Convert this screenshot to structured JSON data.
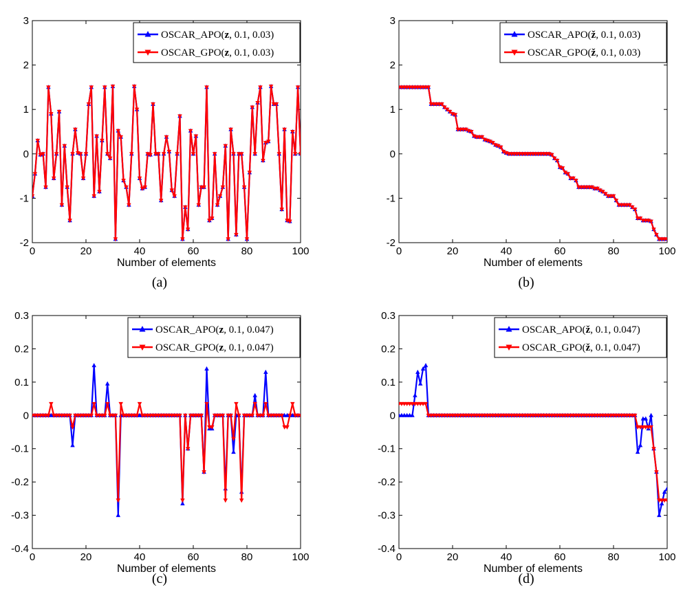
{
  "colors": {
    "apo": "#0000ff",
    "gpo": "#ff0000",
    "axis": "#000000"
  },
  "chart_data": [
    {
      "type": "line",
      "caption": "(a)",
      "xlabel": "Number of elements",
      "xlim": [
        0,
        100
      ],
      "ylim": [
        -2,
        3
      ],
      "xticks": [
        "0",
        "20",
        "40",
        "60",
        "80",
        "100"
      ],
      "yticks": [
        "-2",
        "-1",
        "0",
        "1",
        "2",
        "3"
      ],
      "legend_position": "top-right",
      "series": [
        {
          "name": "OSCAR_APO(z, 0.1, 0.03)",
          "name_func": "OSCAR_APO(",
          "name_args": ", 0.1, 0.03)",
          "name_sym": "z",
          "marker": "triangle-up",
          "values": [
            -0.95,
            -0.45,
            0.3,
            -0.02,
            0.0,
            -0.75,
            1.5,
            0.9,
            -0.55,
            0.0,
            0.95,
            -1.15,
            0.18,
            -0.75,
            -1.5,
            0.0,
            0.55,
            0.02,
            0.0,
            -0.55,
            0.0,
            1.12,
            1.5,
            -0.95,
            0.4,
            -0.85,
            0.3,
            1.5,
            0.0,
            -0.1,
            1.52,
            -1.92,
            0.52,
            0.38,
            -0.6,
            -0.75,
            -1.15,
            0.0,
            1.52,
            1.0,
            -0.55,
            -0.78,
            -0.75,
            0.0,
            -0.02,
            1.12,
            0.0,
            0.0,
            -1.05,
            0.0,
            0.38,
            0.05,
            -0.82,
            -0.95,
            0.0,
            0.85,
            -1.92,
            -1.2,
            -1.7,
            0.52,
            0.0,
            0.4,
            -1.15,
            -0.75,
            -0.75,
            1.5,
            -1.5,
            -1.45,
            0.0,
            -1.15,
            -0.95,
            -0.75,
            0.18,
            -1.92,
            0.55,
            0.0,
            -1.82,
            0.0,
            0.0,
            -0.75,
            -1.92,
            -0.42,
            1.05,
            0.0,
            1.15,
            1.5,
            -0.15,
            0.25,
            0.28,
            1.52,
            1.12,
            1.12,
            0.0,
            -1.25,
            0.55,
            -1.5,
            -1.52,
            0.5,
            0.0,
            1.5,
            0.0,
            0.95,
            -0.32
          ]
        },
        {
          "name": "OSCAR_GPO(z, 0.1, 0.03)",
          "name_func": "OSCAR_GPO(",
          "name_args": ", 0.1, 0.03)",
          "name_sym": "z",
          "marker": "triangle-down",
          "values": [
            -0.95,
            -0.45,
            0.3,
            -0.02,
            0.0,
            -0.75,
            1.5,
            0.9,
            -0.55,
            0.0,
            0.95,
            -1.15,
            0.18,
            -0.75,
            -1.5,
            0.0,
            0.55,
            0.02,
            0.0,
            -0.55,
            0.0,
            1.12,
            1.5,
            -0.95,
            0.4,
            -0.85,
            0.3,
            1.5,
            0.0,
            -0.1,
            1.52,
            -1.92,
            0.52,
            0.38,
            -0.6,
            -0.75,
            -1.15,
            0.0,
            1.52,
            1.0,
            -0.55,
            -0.78,
            -0.75,
            0.0,
            -0.02,
            1.12,
            0.0,
            0.0,
            -1.05,
            0.0,
            0.38,
            0.05,
            -0.82,
            -0.95,
            0.0,
            0.85,
            -1.92,
            -1.2,
            -1.7,
            0.52,
            0.0,
            0.4,
            -1.15,
            -0.75,
            -0.75,
            1.5,
            -1.5,
            -1.45,
            0.0,
            -1.15,
            -0.95,
            -0.75,
            0.18,
            -1.92,
            0.55,
            0.0,
            -1.82,
            0.0,
            0.0,
            -0.75,
            -1.92,
            -0.42,
            1.05,
            0.0,
            1.15,
            1.5,
            -0.15,
            0.25,
            0.28,
            1.52,
            1.12,
            1.12,
            0.0,
            -1.25,
            0.55,
            -1.5,
            -1.52,
            0.5,
            0.0,
            1.5,
            0.0,
            0.95,
            -0.32
          ]
        }
      ]
    },
    {
      "type": "line",
      "caption": "(b)",
      "xlabel": "Number of elements",
      "xlim": [
        0,
        100
      ],
      "ylim": [
        -2,
        3
      ],
      "xticks": [
        "0",
        "20",
        "40",
        "60",
        "80",
        "100"
      ],
      "yticks": [
        "-2",
        "-1",
        "0",
        "1",
        "2",
        "3"
      ],
      "legend_position": "top-right",
      "series": [
        {
          "name": "OSCAR_APO(ž, 0.1, 0.03)",
          "name_func": "OSCAR_APO(",
          "name_args": ", 0.1, 0.03)",
          "name_sym": "ž",
          "marker": "triangle-up",
          "values": [
            1.5,
            1.5,
            1.5,
            1.5,
            1.5,
            1.5,
            1.5,
            1.5,
            1.5,
            1.5,
            1.5,
            1.5,
            1.12,
            1.12,
            1.12,
            1.12,
            1.12,
            1.05,
            1.0,
            0.95,
            0.9,
            0.88,
            0.55,
            0.55,
            0.55,
            0.55,
            0.52,
            0.5,
            0.4,
            0.38,
            0.38,
            0.38,
            0.32,
            0.3,
            0.28,
            0.25,
            0.2,
            0.18,
            0.15,
            0.05,
            0.02,
            0.0,
            0.0,
            0.0,
            0.0,
            0.0,
            0.0,
            0.0,
            0.0,
            0.0,
            0.0,
            0.0,
            0.0,
            0.0,
            0.0,
            0.0,
            0.0,
            -0.02,
            -0.1,
            -0.15,
            -0.3,
            -0.32,
            -0.42,
            -0.45,
            -0.55,
            -0.55,
            -0.6,
            -0.75,
            -0.75,
            -0.75,
            -0.75,
            -0.75,
            -0.75,
            -0.78,
            -0.78,
            -0.82,
            -0.85,
            -0.9,
            -0.95,
            -0.95,
            -0.95,
            -1.05,
            -1.15,
            -1.15,
            -1.15,
            -1.15,
            -1.15,
            -1.2,
            -1.25,
            -1.45,
            -1.45,
            -1.5,
            -1.5,
            -1.5,
            -1.52,
            -1.7,
            -1.82,
            -1.92,
            -1.92,
            -1.92,
            -1.92
          ]
        },
        {
          "name": "OSCAR_GPO(ž, 0.1, 0.03)",
          "name_func": "OSCAR_GPO(",
          "name_args": ", 0.1, 0.03)",
          "name_sym": "ž",
          "marker": "triangle-down",
          "values": [
            1.5,
            1.5,
            1.5,
            1.5,
            1.5,
            1.5,
            1.5,
            1.5,
            1.5,
            1.5,
            1.5,
            1.5,
            1.12,
            1.12,
            1.12,
            1.12,
            1.12,
            1.05,
            1.0,
            0.95,
            0.9,
            0.88,
            0.55,
            0.55,
            0.55,
            0.55,
            0.52,
            0.5,
            0.4,
            0.38,
            0.38,
            0.38,
            0.32,
            0.3,
            0.28,
            0.25,
            0.2,
            0.18,
            0.15,
            0.05,
            0.02,
            0.0,
            0.0,
            0.0,
            0.0,
            0.0,
            0.0,
            0.0,
            0.0,
            0.0,
            0.0,
            0.0,
            0.0,
            0.0,
            0.0,
            0.0,
            0.0,
            -0.02,
            -0.1,
            -0.15,
            -0.3,
            -0.32,
            -0.42,
            -0.45,
            -0.55,
            -0.55,
            -0.6,
            -0.75,
            -0.75,
            -0.75,
            -0.75,
            -0.75,
            -0.75,
            -0.78,
            -0.78,
            -0.82,
            -0.85,
            -0.9,
            -0.95,
            -0.95,
            -0.95,
            -1.05,
            -1.15,
            -1.15,
            -1.15,
            -1.15,
            -1.15,
            -1.2,
            -1.25,
            -1.45,
            -1.45,
            -1.5,
            -1.5,
            -1.5,
            -1.52,
            -1.7,
            -1.82,
            -1.92,
            -1.92,
            -1.92,
            -1.92
          ]
        }
      ]
    },
    {
      "type": "line",
      "caption": "(c)",
      "xlabel": "Number of elements",
      "xlim": [
        0,
        100
      ],
      "ylim": [
        -0.4,
        0.3
      ],
      "xticks": [
        "0",
        "20",
        "40",
        "60",
        "80",
        "100"
      ],
      "yticks": [
        "-0.4",
        "-0.3",
        "-0.2",
        "-0.1",
        "0",
        "0.1",
        "0.2",
        "0.3"
      ],
      "legend_position": "top-right",
      "series": [
        {
          "name": "OSCAR_APO(z, 0.1, 0.047)",
          "name_func": "OSCAR_APO(",
          "name_args": ", 0.1, 0.047)",
          "name_sym": "z",
          "marker": "triangle-up",
          "values": [
            0,
            0,
            0,
            0,
            0,
            0,
            0,
            0,
            0,
            0,
            0,
            0,
            0,
            0,
            0,
            -0.09,
            0,
            0,
            0,
            0,
            0,
            0,
            0,
            0.15,
            0,
            0,
            0,
            0,
            0.095,
            0,
            0,
            0,
            -0.3,
            0,
            0,
            0,
            0,
            0,
            0,
            0,
            0,
            0,
            0,
            0,
            0,
            0,
            0,
            0,
            0,
            0,
            0,
            0,
            0,
            0,
            0,
            0,
            -0.265,
            0,
            -0.1,
            0,
            0,
            0,
            0,
            0,
            -0.17,
            0.14,
            -0.04,
            -0.04,
            0,
            0,
            0,
            0,
            -0.22,
            0,
            0,
            -0.11,
            0,
            0,
            -0.23,
            0,
            0,
            0,
            0,
            0.06,
            0,
            0,
            0,
            0.13,
            0,
            0,
            0,
            0,
            0,
            0,
            0,
            0,
            0,
            0,
            0,
            0,
            0
          ]
        },
        {
          "name": "OSCAR_GPO(z, 0.1, 0.047)",
          "name_func": "OSCAR_GPO(",
          "name_args": ", 0.1, 0.047)",
          "name_sym": "z",
          "marker": "triangle-down",
          "values": [
            0,
            0,
            0,
            0,
            0,
            0,
            0,
            0.035,
            0,
            0,
            0,
            0,
            0,
            0,
            0,
            -0.035,
            0,
            0,
            0,
            0,
            0,
            0,
            0,
            0.035,
            0,
            0,
            0,
            0,
            0.035,
            0,
            0,
            0,
            -0.255,
            0.035,
            0,
            0,
            0,
            0,
            0,
            0,
            0.035,
            0,
            0,
            0,
            0,
            0,
            0,
            0,
            0,
            0,
            0,
            0,
            0,
            0,
            0,
            0,
            -0.255,
            0,
            -0.1,
            0,
            0,
            0,
            0,
            0,
            -0.17,
            0.035,
            -0.035,
            -0.035,
            0,
            0,
            0,
            0,
            -0.255,
            0,
            0,
            -0.07,
            0.035,
            0,
            -0.255,
            0,
            0,
            0,
            0,
            0.035,
            0,
            0,
            0,
            0.035,
            0,
            0,
            0,
            0,
            0,
            0,
            -0.035,
            -0.035,
            0,
            0.035,
            0,
            0,
            0
          ]
        }
      ]
    },
    {
      "type": "line",
      "caption": "(d)",
      "xlabel": "Number of elements",
      "xlim": [
        0,
        100
      ],
      "ylim": [
        -0.4,
        0.3
      ],
      "xticks": [
        "0",
        "20",
        "40",
        "60",
        "80",
        "100"
      ],
      "yticks": [
        "-0.4",
        "-0.3",
        "-0.2",
        "-0.1",
        "0",
        "0.1",
        "0.2",
        "0.3"
      ],
      "legend_position": "top-right",
      "series": [
        {
          "name": "OSCAR_APO(ž, 0.1, 0.047)",
          "name_func": "OSCAR_APO(",
          "name_args": ", 0.1, 0.047)",
          "name_sym": "ž",
          "marker": "triangle-up",
          "values": [
            0,
            0,
            0,
            0,
            0,
            0,
            0.06,
            0.13,
            0.095,
            0.14,
            0.15,
            0,
            0,
            0,
            0,
            0,
            0,
            0,
            0,
            0,
            0,
            0,
            0,
            0,
            0,
            0,
            0,
            0,
            0,
            0,
            0,
            0,
            0,
            0,
            0,
            0,
            0,
            0,
            0,
            0,
            0,
            0,
            0,
            0,
            0,
            0,
            0,
            0,
            0,
            0,
            0,
            0,
            0,
            0,
            0,
            0,
            0,
            0,
            0,
            0,
            0,
            0,
            0,
            0,
            0,
            0,
            0,
            0,
            0,
            0,
            0,
            0,
            0,
            0,
            0,
            0,
            0,
            0,
            0,
            0,
            0,
            0,
            0,
            0,
            0,
            0,
            0,
            0,
            0,
            -0.11,
            -0.09,
            -0.01,
            -0.01,
            -0.04,
            0,
            -0.1,
            -0.17,
            -0.3,
            -0.265,
            -0.23,
            -0.22
          ]
        },
        {
          "name": "OSCAR_GPO(ž, 0.1, 0.047)",
          "name_func": "OSCAR_GPO(",
          "name_args": ", 0.1, 0.047)",
          "name_sym": "ž",
          "marker": "triangle-down",
          "values": [
            0.035,
            0.035,
            0.035,
            0.035,
            0.035,
            0.035,
            0.035,
            0.035,
            0.035,
            0.035,
            0.035,
            0,
            0,
            0,
            0,
            0,
            0,
            0,
            0,
            0,
            0,
            0,
            0,
            0,
            0,
            0,
            0,
            0,
            0,
            0,
            0,
            0,
            0,
            0,
            0,
            0,
            0,
            0,
            0,
            0,
            0,
            0,
            0,
            0,
            0,
            0,
            0,
            0,
            0,
            0,
            0,
            0,
            0,
            0,
            0,
            0,
            0,
            0,
            0,
            0,
            0,
            0,
            0,
            0,
            0,
            0,
            0,
            0,
            0,
            0,
            0,
            0,
            0,
            0,
            0,
            0,
            0,
            0,
            0,
            0,
            0,
            0,
            0,
            0,
            0,
            0,
            0,
            0,
            0,
            -0.035,
            -0.035,
            -0.035,
            -0.035,
            -0.035,
            -0.035,
            -0.1,
            -0.17,
            -0.255,
            -0.255,
            -0.255,
            -0.255
          ]
        }
      ]
    }
  ]
}
